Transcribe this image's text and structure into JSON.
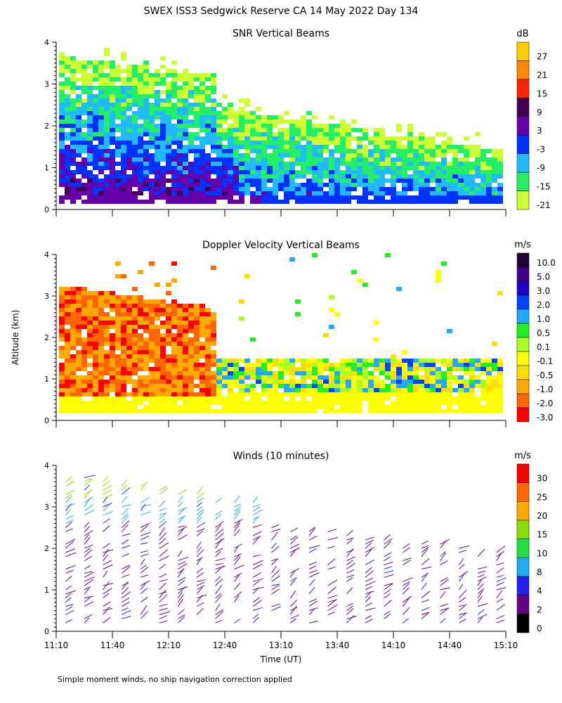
{
  "figure": {
    "title": "SWEX ISS3 Sedgwick Reserve CA  14 May 2022 Day 134",
    "ylabel": "Altitude (km)",
    "xlabel": "Time (UT)",
    "footnote": "Simple moment winds, no ship navigation correction applied",
    "x_ticks": [
      "11:10",
      "11:40",
      "12:10",
      "12:40",
      "13:10",
      "13:40",
      "14:10",
      "14:40",
      "15:10"
    ],
    "y_ticks": [
      "0",
      "1",
      "2",
      "3",
      "4"
    ]
  },
  "chart_data": [
    {
      "type": "heatmap",
      "title": "SNR Vertical Beams",
      "ylabel": "Altitude (km)",
      "ylim": [
        0,
        4
      ],
      "x_range": [
        "11:10",
        "15:10"
      ],
      "colorbar": {
        "unit": "dB",
        "labels": [
          "27",
          "21",
          "15",
          "9",
          "3",
          "-3",
          "-9",
          "-15",
          "-21"
        ],
        "colors": [
          "#ffcc00",
          "#ff8800",
          "#ff2200",
          "#440055",
          "#6600aa",
          "#0033ff",
          "#22bbff",
          "#22ee66",
          "#ccff33"
        ]
      }
    },
    {
      "type": "heatmap",
      "title": "Doppler Velocity Vertical Beams",
      "ylabel": "Altitude (km)",
      "ylim": [
        0,
        4
      ],
      "x_range": [
        "11:10",
        "15:10"
      ],
      "colorbar": {
        "unit": "m/s",
        "labels": [
          "10.0",
          "5.0",
          "3.0",
          "2.0",
          "1.0",
          "0.5",
          "0.1",
          "-0.1",
          "-0.5",
          "-1.0",
          "-2.0",
          "-3.0"
        ],
        "colors": [
          "#220033",
          "#440088",
          "#2200cc",
          "#0044ff",
          "#22aaff",
          "#22ee22",
          "#aaff22",
          "#ffff00",
          "#ffdd00",
          "#ffaa00",
          "#ff6600",
          "#ff0000"
        ]
      }
    },
    {
      "type": "scatter",
      "title": "Winds (10 minutes)",
      "xlabel": "Time (UT)",
      "ylabel": "Altitude (km)",
      "ylim": [
        0,
        4
      ],
      "x_range": [
        "11:10",
        "15:10"
      ],
      "colorbar": {
        "unit": "m/s",
        "labels": [
          "30",
          "25",
          "20",
          "15",
          "10",
          "8",
          "4",
          "2",
          "0"
        ],
        "colors": [
          "#ff0000",
          "#ff6600",
          "#ffaa00",
          "#88dd00",
          "#22dd44",
          "#22aaee",
          "#2222ee",
          "#660088",
          "#000000"
        ]
      }
    }
  ]
}
